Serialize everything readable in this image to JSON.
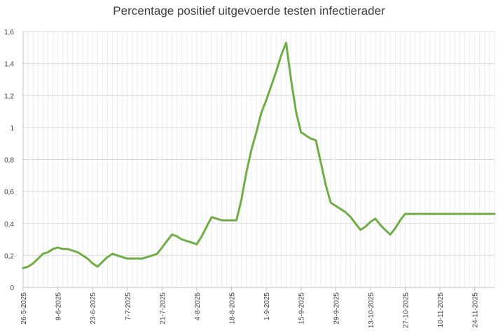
{
  "chart_data": {
    "type": "line",
    "title": "Percentage positief uitgevoerde testen infectierader",
    "xlabel": "",
    "ylabel": "",
    "ylim": [
      0,
      1.6
    ],
    "yticks": [
      "0",
      "0,2",
      "0,4",
      "0,6",
      "0,8",
      "1",
      "1,2",
      "1,4",
      "1,6"
    ],
    "x_start": "26-5-2025",
    "x_end": "2-12-2025",
    "xtick_labels": [
      "26-5-2025",
      "9-6-2025",
      "23-6-2025",
      "7-7-2025",
      "21-7-2025",
      "4-8-2025",
      "18-8-2025",
      "1-9-2025",
      "15-9-2025",
      "29-9-2025",
      "13-10-2025",
      "27-10-2025",
      "10-11-2025",
      "24-11-2025"
    ],
    "grid": true,
    "line_color": "#70ad47",
    "series": [
      {
        "x": [
          "26-5-2025",
          "28-5-2025",
          "30-5-2025",
          "1-6-2025",
          "3-6-2025",
          "5-6-2025",
          "7-6-2025",
          "9-6-2025",
          "11-6-2025",
          "13-6-2025",
          "15-6-2025",
          "17-6-2025",
          "19-6-2025",
          "21-6-2025",
          "23-6-2025",
          "25-6-2025",
          "27-6-2025",
          "29-6-2025",
          "1-7-2025",
          "3-7-2025",
          "5-7-2025",
          "7-7-2025",
          "9-7-2025",
          "11-7-2025",
          "13-7-2025",
          "15-7-2025",
          "17-7-2025",
          "19-7-2025",
          "21-7-2025",
          "23-7-2025",
          "25-7-2025",
          "27-7-2025",
          "29-7-2025",
          "31-7-2025",
          "2-8-2025",
          "4-8-2025",
          "6-8-2025",
          "8-8-2025",
          "10-8-2025",
          "12-8-2025",
          "14-8-2025",
          "16-8-2025",
          "18-8-2025",
          "20-8-2025",
          "22-8-2025",
          "24-8-2025",
          "26-8-2025",
          "28-8-2025",
          "30-8-2025",
          "1-9-2025",
          "3-9-2025",
          "5-9-2025",
          "7-9-2025",
          "9-9-2025",
          "11-9-2025",
          "13-9-2025",
          "15-9-2025",
          "17-9-2025",
          "19-9-2025",
          "21-9-2025",
          "23-9-2025",
          "25-9-2025",
          "27-9-2025",
          "29-9-2025",
          "1-10-2025",
          "3-10-2025",
          "5-10-2025",
          "7-10-2025",
          "9-10-2025",
          "11-10-2025",
          "13-10-2025",
          "15-10-2025",
          "17-10-2025",
          "19-10-2025",
          "21-10-2025",
          "23-10-2025",
          "25-10-2025",
          "27-10-2025",
          "29-10-2025",
          "31-10-2025",
          "2-11-2025",
          "4-11-2025",
          "6-11-2025",
          "8-11-2025",
          "10-11-2025",
          "12-11-2025",
          "14-11-2025",
          "16-11-2025",
          "18-11-2025",
          "20-11-2025",
          "22-11-2025",
          "24-11-2025",
          "26-11-2025",
          "28-11-2025",
          "30-11-2025",
          "2-12-2025"
        ],
        "values": [
          0.12,
          0.13,
          0.15,
          0.18,
          0.21,
          0.22,
          0.24,
          0.25,
          0.24,
          0.24,
          0.23,
          0.22,
          0.2,
          0.18,
          0.15,
          0.13,
          0.16,
          0.19,
          0.21,
          0.2,
          0.19,
          0.18,
          0.18,
          0.18,
          0.18,
          0.19,
          0.2,
          0.21,
          0.25,
          0.29,
          0.33,
          0.32,
          0.3,
          0.29,
          0.28,
          0.27,
          0.32,
          0.38,
          0.44,
          0.43,
          0.42,
          0.42,
          0.42,
          0.42,
          0.55,
          0.72,
          0.86,
          0.97,
          1.09,
          1.17,
          1.26,
          1.35,
          1.45,
          1.53,
          1.3,
          1.1,
          0.97,
          0.95,
          0.93,
          0.92,
          0.78,
          0.64,
          0.53,
          0.51,
          0.49,
          0.47,
          0.44,
          0.4,
          0.36,
          0.38,
          0.41,
          0.43,
          0.39,
          0.36,
          0.33,
          0.37,
          0.42,
          0.46,
          0.46,
          0.46,
          0.46,
          0.46,
          0.46,
          0.46,
          0.46,
          0.46,
          0.46,
          0.46,
          0.46,
          0.46,
          0.46,
          0.46,
          0.46,
          0.46,
          0.46,
          0.46
        ]
      }
    ]
  }
}
